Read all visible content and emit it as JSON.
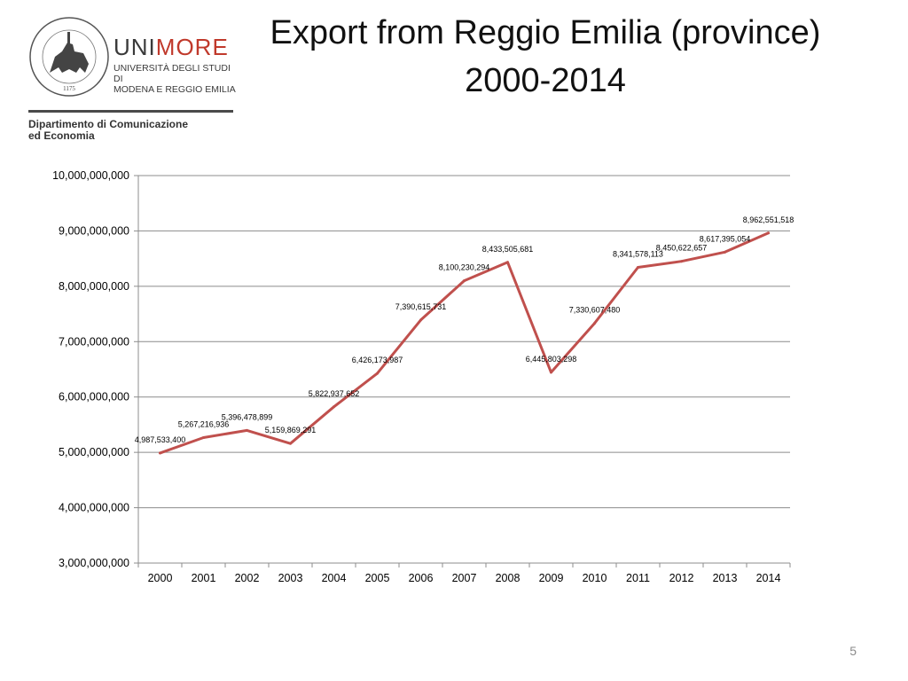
{
  "logo": {
    "name_part1": "UNI",
    "name_part2": "MORE",
    "subtitle_line1": "UNIVERSITÀ DEGLI STUDI DI",
    "subtitle_line2": "MODENA E REGGIO EMILIA",
    "seal_year": "1175",
    "department_line1": "Dipartimento di Comunicazione",
    "department_line2": "ed Economia",
    "brand_color": "#c0392b"
  },
  "page_number": "5",
  "chart_data": {
    "type": "line",
    "title_line1": "Export from Reggio Emilia (province)",
    "title_line2": "2000-2014",
    "xlabel": "",
    "ylabel": "",
    "ylim": [
      3000000000,
      10000000000
    ],
    "ytick_values": [
      3000000000,
      4000000000,
      5000000000,
      6000000000,
      7000000000,
      8000000000,
      9000000000,
      10000000000
    ],
    "ytick_labels": [
      "3,000,000,000",
      "4,000,000,000",
      "5,000,000,000",
      "6,000,000,000",
      "7,000,000,000",
      "8,000,000,000",
      "9,000,000,000",
      "10,000,000,000"
    ],
    "grid": true,
    "legend": "none",
    "line_color": "#c0504d",
    "categories": [
      "2000",
      "2001",
      "2002",
      "2003",
      "2004",
      "2005",
      "2006",
      "2007",
      "2008",
      "2009",
      "2010",
      "2011",
      "2012",
      "2013",
      "2014"
    ],
    "values": [
      4987533400,
      5267216936,
      5396478899,
      5159869291,
      5822937652,
      6426173987,
      7390615731,
      8100230294,
      8433505681,
      6445803298,
      7330607480,
      8341578113,
      8450622657,
      8617395054,
      8962551518
    ],
    "data_labels": [
      "4,987,533,400",
      "5,267,216,936",
      "5,396,478,899",
      "5,159,869,291",
      "5,822,937,652",
      "6,426,173,987",
      "7,390,615,731",
      "8,100,230,294",
      "8,433,505,681",
      "6,445,803,298",
      "7,330,607,480",
      "8,341,578,113",
      "8,450,622,657",
      "8,617,395,054",
      "8,962,551,518"
    ]
  }
}
